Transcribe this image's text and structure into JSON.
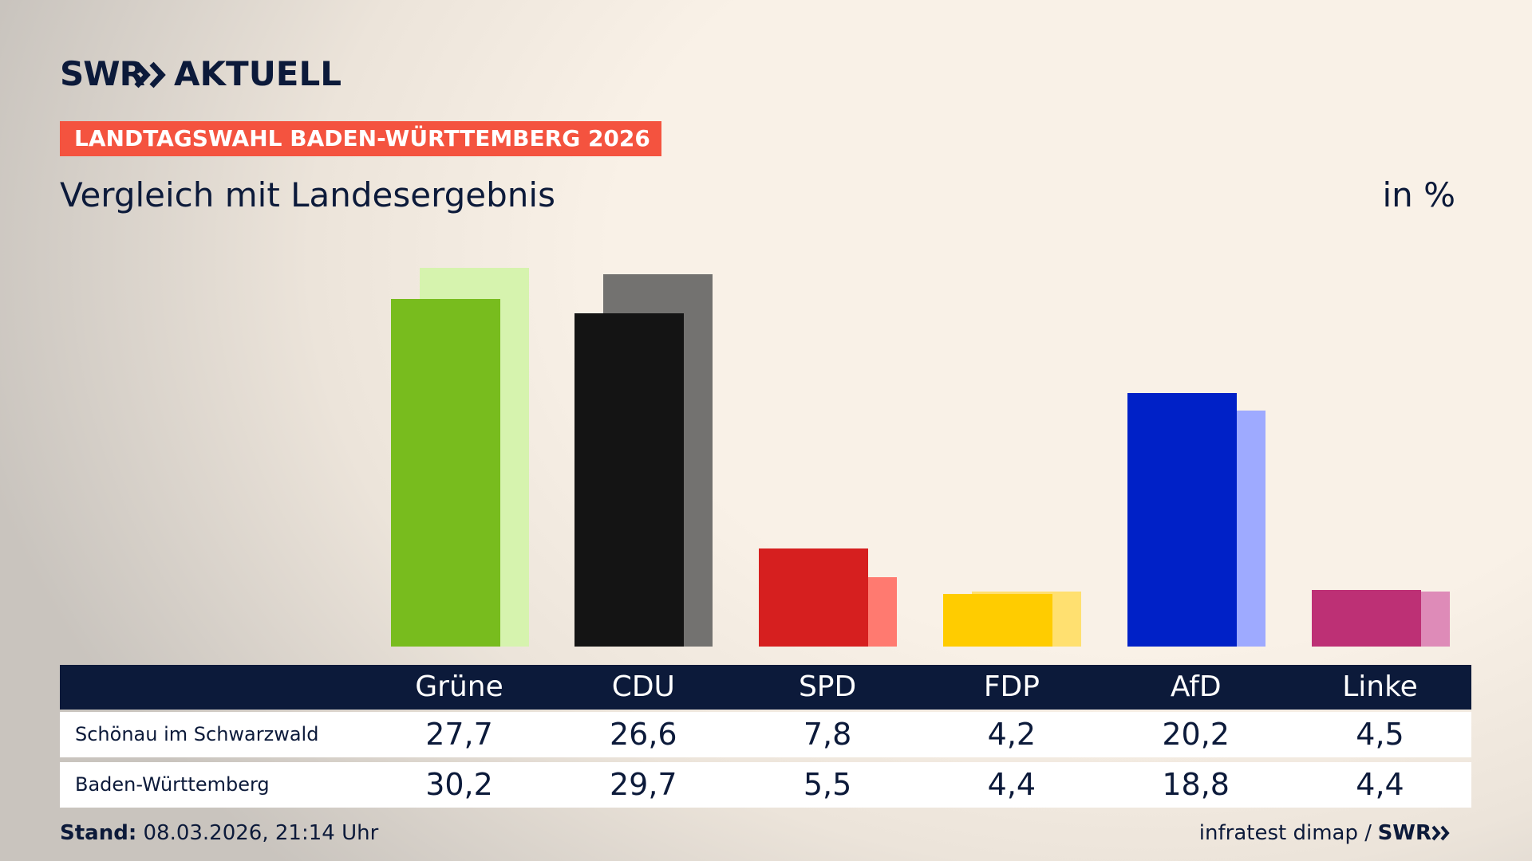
{
  "header": {
    "brand": "SWR",
    "section": "AKTUELL"
  },
  "chart_data": {
    "type": "bar",
    "badge": "LANDTAGSWAHL BADEN-WÜRTTEMBERG 2026",
    "title": "Vergleich mit Landesergebnis",
    "unit": "in %",
    "categories": [
      "Grüne",
      "CDU",
      "SPD",
      "FDP",
      "AfD",
      "Linke"
    ],
    "series": [
      {
        "name": "Schönau im Schwarzwald",
        "colors": [
          "#78bc1e",
          "#141414",
          "#d61f1f",
          "#ffcc00",
          "#0021c7",
          "#bd3075"
        ],
        "values": [
          27.7,
          26.6,
          7.8,
          4.2,
          20.2,
          4.5
        ],
        "value_labels": [
          "27,7",
          "26,6",
          "7,8",
          "4,2",
          "20,2",
          "4,5"
        ]
      },
      {
        "name": "Baden-Württemberg",
        "colors": [
          "#d6f3ae",
          "#737270",
          "#ff7a70",
          "#ffe070",
          "#9eaaff",
          "#de8bb8"
        ],
        "values": [
          30.2,
          29.7,
          5.5,
          4.4,
          18.8,
          4.4
        ],
        "value_labels": [
          "30,2",
          "29,7",
          "5,5",
          "4,4",
          "18,8",
          "4,4"
        ]
      }
    ]
  },
  "footer": {
    "label": "Stand:",
    "date": "08.03.2026, 21:14 Uhr",
    "source": "infratest dimap /",
    "brand": "SWR"
  }
}
